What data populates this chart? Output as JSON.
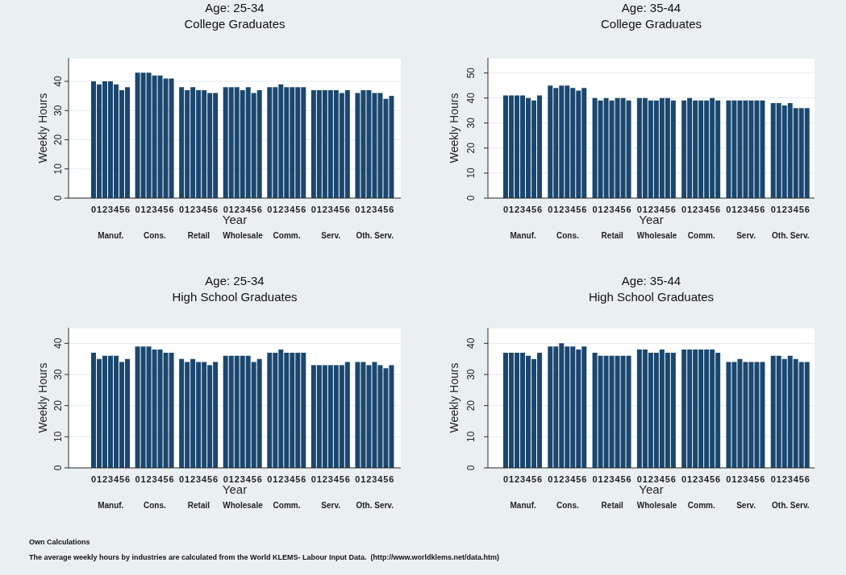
{
  "chart_data": [
    {
      "type": "bar",
      "title": "Age: 25-34",
      "subtitle": "College Graduates",
      "xlabel": "Year",
      "ylabel": "Weekly Hours",
      "categories": [
        "Manuf.",
        "Cons.",
        "Retail",
        "Wholesale",
        "Comm.",
        "Serv.",
        "Oth. Serv."
      ],
      "series": [
        {
          "name": "0",
          "color": "#1a476f",
          "values": [
            40,
            43,
            38,
            38,
            38,
            37,
            36
          ]
        },
        {
          "name": "1",
          "color": "#1a476f",
          "values": [
            39,
            43,
            37,
            38,
            38,
            37,
            37
          ]
        },
        {
          "name": "2",
          "color": "#1a476f",
          "values": [
            40,
            43,
            38,
            38,
            39,
            37,
            37
          ]
        },
        {
          "name": "3",
          "color": "#1a476f",
          "values": [
            40,
            42,
            37,
            37,
            38,
            37,
            36
          ]
        },
        {
          "name": "4",
          "color": "#1a476f",
          "values": [
            39,
            42,
            37,
            38,
            38,
            37,
            36
          ]
        },
        {
          "name": "5",
          "color": "#1a476f",
          "values": [
            37,
            41,
            36,
            36,
            38,
            36,
            34
          ]
        },
        {
          "name": "6",
          "color": "#1a476f",
          "values": [
            38,
            41,
            36,
            37,
            38,
            37,
            35
          ]
        }
      ],
      "ylim": [
        0,
        48
      ],
      "yticks": [
        0,
        10,
        20,
        30,
        40
      ],
      "grid": "y"
    },
    {
      "type": "bar",
      "title": "Age: 35-44",
      "subtitle": "College Graduates",
      "xlabel": "Year",
      "ylabel": "Weekly Hours",
      "categories": [
        "Manuf.",
        "Cons.",
        "Retail",
        "Wholesale",
        "Comm.",
        "Serv.",
        "Oth. Serv."
      ],
      "series": [
        {
          "name": "0",
          "color": "#1a476f",
          "values": [
            41,
            45,
            40,
            40,
            39,
            39,
            38
          ]
        },
        {
          "name": "1",
          "color": "#1a476f",
          "values": [
            41,
            44,
            39,
            40,
            40,
            39,
            38
          ]
        },
        {
          "name": "2",
          "color": "#1a476f",
          "values": [
            41,
            45,
            40,
            39,
            39,
            39,
            37
          ]
        },
        {
          "name": "3",
          "color": "#1a476f",
          "values": [
            41,
            45,
            39,
            39,
            39,
            39,
            38
          ]
        },
        {
          "name": "4",
          "color": "#1a476f",
          "values": [
            40,
            44,
            40,
            40,
            39,
            39,
            36
          ]
        },
        {
          "name": "5",
          "color": "#1a476f",
          "values": [
            39,
            43,
            40,
            40,
            40,
            39,
            36
          ]
        },
        {
          "name": "6",
          "color": "#1a476f",
          "values": [
            41,
            44,
            39,
            39,
            39,
            39,
            36
          ]
        }
      ],
      "ylim": [
        0,
        56
      ],
      "yticks": [
        0,
        10,
        20,
        30,
        40,
        50
      ],
      "grid": "y"
    },
    {
      "type": "bar",
      "title": "Age: 25-34",
      "subtitle": "High School Graduates",
      "xlabel": "Year",
      "ylabel": "Weekly Hours",
      "categories": [
        "Manuf.",
        "Cons.",
        "Retail",
        "Wholesale",
        "Comm.",
        "Serv.",
        "Oth. Serv."
      ],
      "series": [
        {
          "name": "0",
          "color": "#1a476f",
          "values": [
            37,
            39,
            35,
            36,
            37,
            33,
            34
          ]
        },
        {
          "name": "1",
          "color": "#1a476f",
          "values": [
            35,
            39,
            34,
            36,
            37,
            33,
            34
          ]
        },
        {
          "name": "2",
          "color": "#1a476f",
          "values": [
            36,
            39,
            35,
            36,
            38,
            33,
            33
          ]
        },
        {
          "name": "3",
          "color": "#1a476f",
          "values": [
            36,
            38,
            34,
            36,
            37,
            33,
            34
          ]
        },
        {
          "name": "4",
          "color": "#1a476f",
          "values": [
            36,
            38,
            34,
            36,
            37,
            33,
            33
          ]
        },
        {
          "name": "5",
          "color": "#1a476f",
          "values": [
            34,
            37,
            33,
            34,
            37,
            33,
            32
          ]
        },
        {
          "name": "6",
          "color": "#1a476f",
          "values": [
            35,
            37,
            34,
            35,
            37,
            34,
            33
          ]
        }
      ],
      "ylim": [
        0,
        45
      ],
      "yticks": [
        0,
        10,
        20,
        30,
        40
      ],
      "grid": "y"
    },
    {
      "type": "bar",
      "title": "Age: 35-44",
      "subtitle": "High School Graduates",
      "xlabel": "Year",
      "ylabel": "Weekly Hours",
      "categories": [
        "Manuf.",
        "Cons.",
        "Retail",
        "Wholesale",
        "Comm.",
        "Serv.",
        "Oth. Serv."
      ],
      "series": [
        {
          "name": "0",
          "color": "#1a476f",
          "values": [
            37,
            39,
            37,
            38,
            38,
            34,
            36
          ]
        },
        {
          "name": "1",
          "color": "#1a476f",
          "values": [
            37,
            39,
            36,
            38,
            38,
            34,
            36
          ]
        },
        {
          "name": "2",
          "color": "#1a476f",
          "values": [
            37,
            40,
            36,
            37,
            38,
            35,
            35
          ]
        },
        {
          "name": "3",
          "color": "#1a476f",
          "values": [
            37,
            39,
            36,
            37,
            38,
            34,
            36
          ]
        },
        {
          "name": "4",
          "color": "#1a476f",
          "values": [
            36,
            39,
            36,
            38,
            38,
            34,
            35
          ]
        },
        {
          "name": "5",
          "color": "#1a476f",
          "values": [
            35,
            38,
            36,
            37,
            38,
            34,
            34
          ]
        },
        {
          "name": "6",
          "color": "#1a476f",
          "values": [
            37,
            39,
            36,
            37,
            37,
            34,
            34
          ]
        }
      ],
      "ylim": [
        0,
        45
      ],
      "yticks": [
        0,
        10,
        20,
        30,
        40
      ],
      "grid": "y",
      "annotations": [
        "Own Calculations",
        "The average weekly hours by industries are calculated from the World KLEMS- Labour Input Data.  (http://www.worldklems.net/data.htm)"
      ]
    }
  ]
}
